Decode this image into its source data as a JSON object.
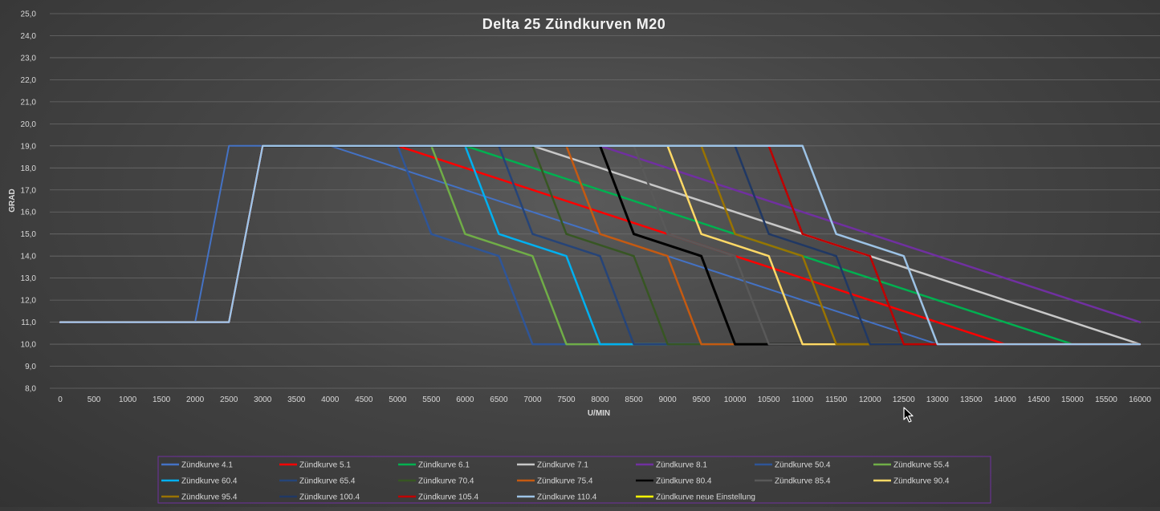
{
  "chart_data": {
    "type": "line",
    "title": "Delta 25 Zündkurven M20",
    "xlabel": "U/MIN",
    "ylabel": "GRAD",
    "xlim": [
      0,
      16000
    ],
    "ylim": [
      8,
      25
    ],
    "x_ticks": [
      "0",
      "500",
      "1000",
      "1500",
      "2000",
      "2500",
      "3000",
      "3500",
      "4000",
      "4500",
      "5000",
      "5500",
      "6000",
      "6500",
      "7000",
      "7500",
      "8000",
      "8500",
      "9000",
      "9500",
      "10000",
      "10500",
      "11000",
      "11500",
      "12000",
      "12500",
      "13000",
      "13500",
      "14000",
      "14500",
      "15000",
      "15500",
      "16000"
    ],
    "y_ticks": [
      "8,0",
      "9,0",
      "10,0",
      "11,0",
      "12,0",
      "13,0",
      "14,0",
      "15,0",
      "16,0",
      "17,0",
      "18,0",
      "19,0",
      "20,0",
      "21,0",
      "22,0",
      "23,0",
      "24,0",
      "25,0"
    ],
    "grid": true,
    "legend_position": "bottom",
    "series": [
      {
        "name": "Zündkurve 4.1",
        "color": "#4472c4",
        "width": 2,
        "points": [
          [
            0,
            11
          ],
          [
            2000,
            11
          ],
          [
            2500,
            19
          ],
          [
            4000,
            19
          ],
          [
            13000,
            10
          ],
          [
            16000,
            10
          ]
        ]
      },
      {
        "name": "Zündkurve 5.1",
        "color": "#ff0000",
        "width": 2.5,
        "points": [
          [
            0,
            11
          ],
          [
            2500,
            11
          ],
          [
            3000,
            19
          ],
          [
            5000,
            19
          ],
          [
            14000,
            10
          ],
          [
            16000,
            10
          ]
        ]
      },
      {
        "name": "Zündkurve 6.1",
        "color": "#00b050",
        "width": 2.5,
        "points": [
          [
            0,
            11
          ],
          [
            2500,
            11
          ],
          [
            3000,
            19
          ],
          [
            6000,
            19
          ],
          [
            15000,
            10
          ],
          [
            16000,
            10
          ]
        ]
      },
      {
        "name": "Zündkurve 7.1",
        "color": "#c8c8c8",
        "width": 2.5,
        "points": [
          [
            0,
            11
          ],
          [
            2500,
            11
          ],
          [
            3000,
            19
          ],
          [
            7000,
            19
          ],
          [
            16000,
            10
          ]
        ]
      },
      {
        "name": "Zündkurve 8.1",
        "color": "#7030a0",
        "width": 2.5,
        "points": [
          [
            0,
            11
          ],
          [
            2500,
            11
          ],
          [
            3000,
            19
          ],
          [
            8000,
            19
          ],
          [
            16000,
            11
          ]
        ]
      },
      {
        "name": "Zündkurve 50.4",
        "color": "#2f5597",
        "width": 2.5,
        "points": [
          [
            0,
            11
          ],
          [
            2500,
            11
          ],
          [
            3000,
            19
          ],
          [
            5000,
            19
          ],
          [
            5500,
            15
          ],
          [
            6500,
            14
          ],
          [
            7000,
            10
          ],
          [
            16000,
            10
          ]
        ]
      },
      {
        "name": "Zündkurve 55.4",
        "color": "#70ad47",
        "width": 2.5,
        "points": [
          [
            0,
            11
          ],
          [
            2500,
            11
          ],
          [
            3000,
            19
          ],
          [
            5500,
            19
          ],
          [
            6000,
            15
          ],
          [
            7000,
            14
          ],
          [
            7500,
            10
          ],
          [
            16000,
            10
          ]
        ]
      },
      {
        "name": "Zündkurve 60.4",
        "color": "#00b0f0",
        "width": 2.5,
        "points": [
          [
            0,
            11
          ],
          [
            2500,
            11
          ],
          [
            3000,
            19
          ],
          [
            6000,
            19
          ],
          [
            6500,
            15
          ],
          [
            7500,
            14
          ],
          [
            8000,
            10
          ],
          [
            16000,
            10
          ]
        ]
      },
      {
        "name": "Zündkurve 65.4",
        "color": "#264478",
        "width": 2.5,
        "points": [
          [
            0,
            11
          ],
          [
            2500,
            11
          ],
          [
            3000,
            19
          ],
          [
            6500,
            19
          ],
          [
            7000,
            15
          ],
          [
            8000,
            14
          ],
          [
            8500,
            10
          ],
          [
            16000,
            10
          ]
        ]
      },
      {
        "name": "Zündkurve 70.4",
        "color": "#375623",
        "width": 2.5,
        "points": [
          [
            0,
            11
          ],
          [
            2500,
            11
          ],
          [
            3000,
            19
          ],
          [
            7000,
            19
          ],
          [
            7500,
            15
          ],
          [
            8500,
            14
          ],
          [
            9000,
            10
          ],
          [
            16000,
            10
          ]
        ]
      },
      {
        "name": "Zündkurve 75.4",
        "color": "#c55a11",
        "width": 2.5,
        "points": [
          [
            0,
            11
          ],
          [
            2500,
            11
          ],
          [
            3000,
            19
          ],
          [
            7500,
            19
          ],
          [
            8000,
            15
          ],
          [
            9000,
            14
          ],
          [
            9500,
            10
          ],
          [
            16000,
            10
          ]
        ]
      },
      {
        "name": "Zündkurve 80.4",
        "color": "#000000",
        "width": 3,
        "points": [
          [
            0,
            11
          ],
          [
            2500,
            11
          ],
          [
            3000,
            19
          ],
          [
            8000,
            19
          ],
          [
            8500,
            15
          ],
          [
            9500,
            14
          ],
          [
            10000,
            10
          ],
          [
            16000,
            10
          ]
        ]
      },
      {
        "name": "Zündkurve 85.4",
        "color": "#595959",
        "width": 2.5,
        "points": [
          [
            0,
            11
          ],
          [
            2500,
            11
          ],
          [
            3000,
            19
          ],
          [
            8500,
            19
          ],
          [
            9000,
            15
          ],
          [
            10000,
            14
          ],
          [
            10500,
            10
          ],
          [
            16000,
            10
          ]
        ]
      },
      {
        "name": "Zündkurve 90.4",
        "color": "#ffd966",
        "width": 2.5,
        "points": [
          [
            0,
            11
          ],
          [
            2500,
            11
          ],
          [
            3000,
            19
          ],
          [
            9000,
            19
          ],
          [
            9500,
            15
          ],
          [
            10500,
            14
          ],
          [
            11000,
            10
          ],
          [
            16000,
            10
          ]
        ]
      },
      {
        "name": "Zündkurve 95.4",
        "color": "#997300",
        "width": 2.5,
        "points": [
          [
            0,
            11
          ],
          [
            2500,
            11
          ],
          [
            3000,
            19
          ],
          [
            9500,
            19
          ],
          [
            10000,
            15
          ],
          [
            11000,
            14
          ],
          [
            11500,
            10
          ],
          [
            16000,
            10
          ]
        ]
      },
      {
        "name": "Zündkurve 100.4",
        "color": "#203864",
        "width": 2.5,
        "points": [
          [
            0,
            11
          ],
          [
            2500,
            11
          ],
          [
            3000,
            19
          ],
          [
            10000,
            19
          ],
          [
            10500,
            15
          ],
          [
            11500,
            14
          ],
          [
            12000,
            10
          ],
          [
            16000,
            10
          ]
        ]
      },
      {
        "name": "Zündkurve 105.4",
        "color": "#c00000",
        "width": 2.5,
        "points": [
          [
            0,
            11
          ],
          [
            2500,
            11
          ],
          [
            3000,
            19
          ],
          [
            10500,
            19
          ],
          [
            11000,
            15
          ],
          [
            12000,
            14
          ],
          [
            12500,
            10
          ],
          [
            16000,
            10
          ]
        ]
      },
      {
        "name": "Zündkurve 110.4",
        "color": "#9dc3e6",
        "width": 2.5,
        "points": [
          [
            0,
            11
          ],
          [
            2500,
            11
          ],
          [
            3000,
            19
          ],
          [
            11000,
            19
          ],
          [
            11500,
            15
          ],
          [
            12500,
            14
          ],
          [
            13000,
            10
          ],
          [
            16000,
            10
          ]
        ]
      },
      {
        "name": "Zündkurve neue Einstellung",
        "color": "#ffff00",
        "width": 2.5,
        "points": []
      }
    ]
  },
  "cursor": "pointer-cursor-icon"
}
